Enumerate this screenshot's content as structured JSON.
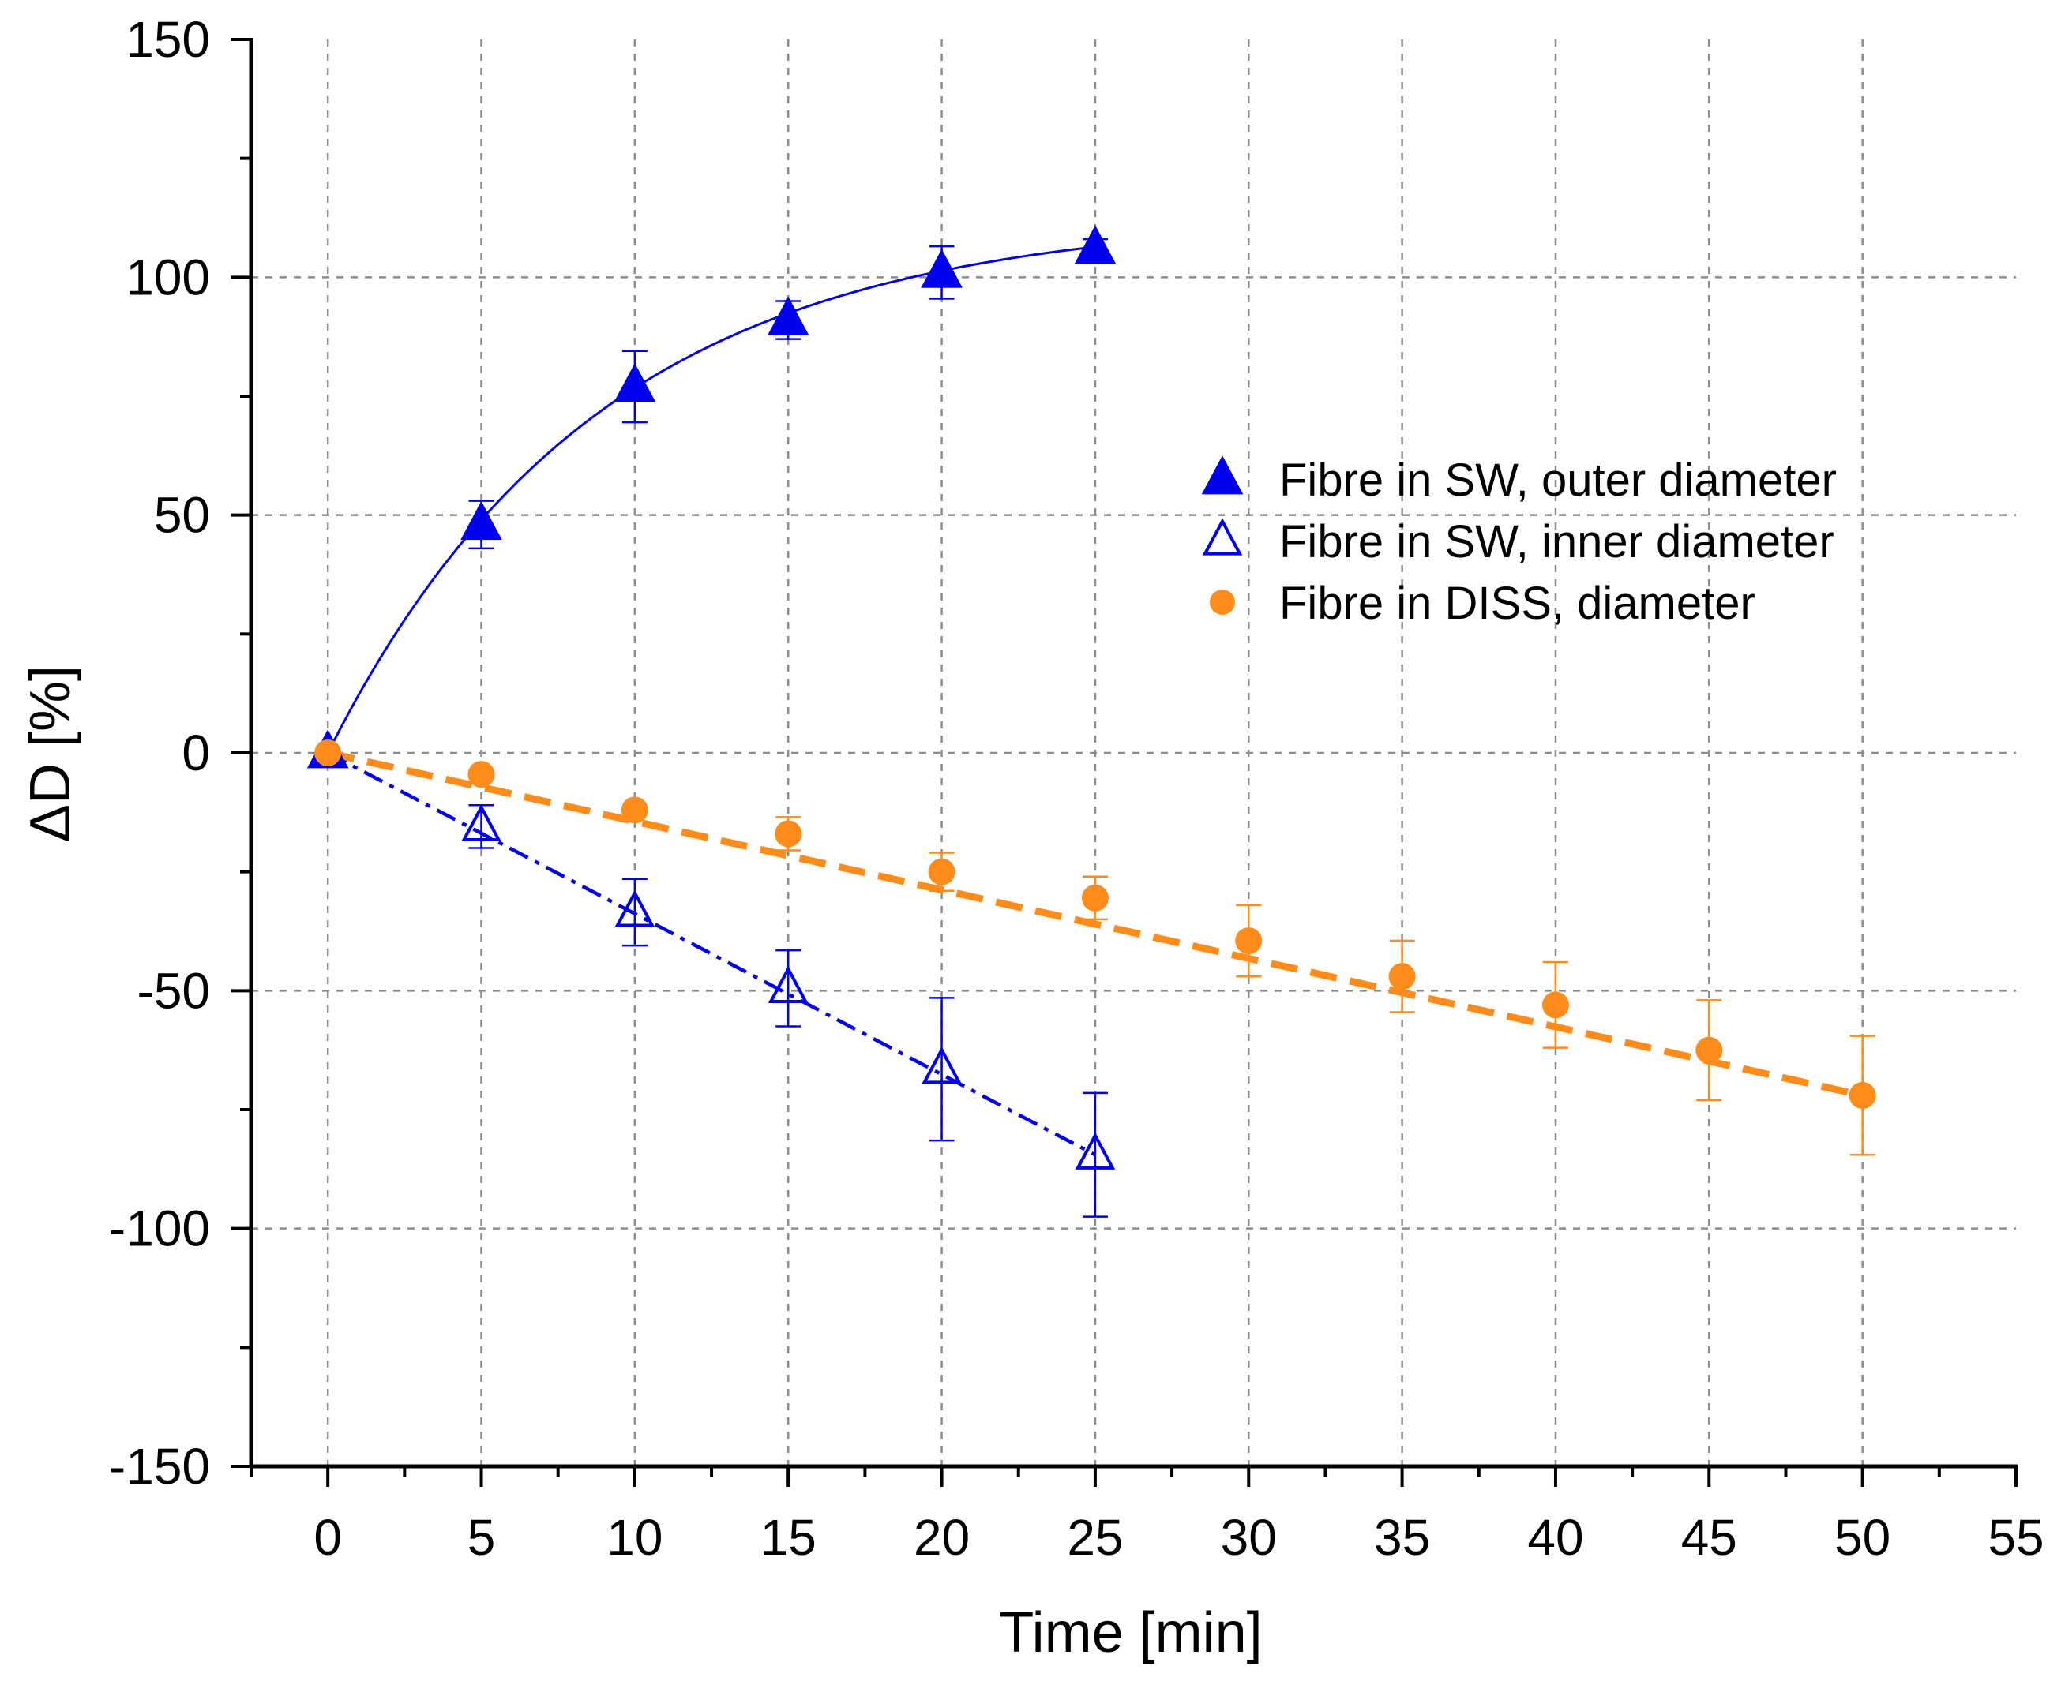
{
  "chart_data": {
    "type": "scatter",
    "title": "",
    "xlabel": "Time [min]",
    "ylabel": "ΔD [%]",
    "xlim": [
      -2.5,
      55
    ],
    "ylim": [
      -150,
      150
    ],
    "xticks": [
      0,
      5,
      10,
      15,
      20,
      25,
      30,
      35,
      40,
      45,
      50,
      55
    ],
    "yticks": [
      150,
      100,
      50,
      0,
      -50,
      -100,
      -150
    ],
    "xtick_labels": [
      "0",
      "5",
      "10",
      "15",
      "20",
      "25",
      "30",
      "35",
      "40",
      "45",
      "50",
      "55"
    ],
    "ytick_labels": [
      "150",
      "100",
      "50",
      "0",
      "-50",
      "-100",
      "-150"
    ],
    "grid": true,
    "legend_position": "right-center",
    "series": [
      {
        "name": "Fibre in SW, outer diameter",
        "marker": "filled-triangle",
        "color": "#0000ee",
        "fit": "exponential",
        "x": [
          0,
          5,
          10,
          15,
          20,
          25
        ],
        "y": [
          0,
          48,
          77,
          91,
          101,
          106
        ],
        "err": [
          0,
          5,
          7.5,
          4,
          5.5,
          2
        ]
      },
      {
        "name": "Fibre in SW, inner diameter",
        "marker": "open-triangle",
        "color": "#0000ee",
        "fit": "linear-dashdot",
        "x": [
          0,
          5,
          10,
          15,
          20,
          25
        ],
        "y": [
          0,
          -15.5,
          -33.5,
          -49.5,
          -66.5,
          -84.5
        ],
        "err": [
          0,
          4.5,
          7,
          8,
          15,
          13
        ]
      },
      {
        "name": "Fibre in DISS, diameter",
        "marker": "filled-circle",
        "color": "#ff8c1a",
        "fit": "linear-dashed",
        "x": [
          0,
          5,
          10,
          15,
          20,
          25,
          30,
          35,
          40,
          45,
          50
        ],
        "y": [
          0,
          -4.5,
          -12,
          -17,
          -25,
          -30.5,
          -39.5,
          -47,
          -53,
          -62.5,
          -72
        ],
        "err": [
          0,
          0,
          0,
          3.5,
          4,
          4.5,
          7.5,
          7.5,
          9,
          10.5,
          12.5
        ]
      }
    ]
  }
}
